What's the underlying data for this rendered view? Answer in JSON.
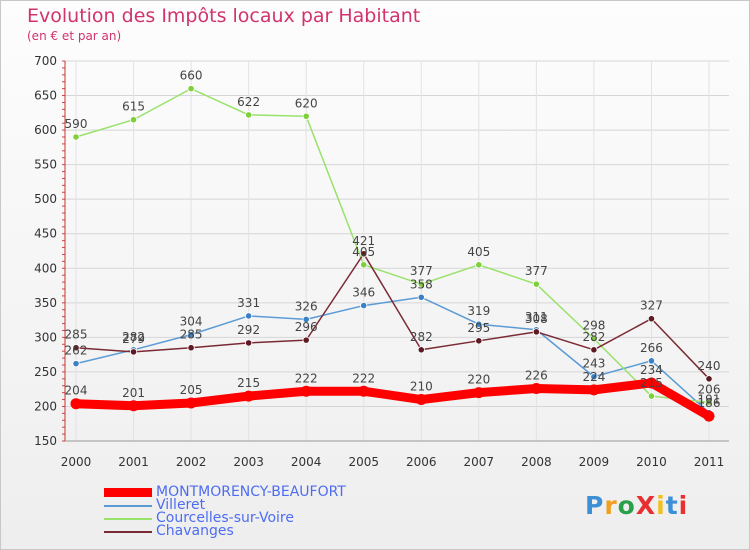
{
  "header": {
    "title": "Evolution des Impôts locaux par Habitant",
    "subtitle": "(en € et par an)"
  },
  "logo": {
    "text": "ProXiti"
  },
  "chart_data": {
    "type": "line",
    "title": "Evolution des Impôts locaux par Habitant",
    "subtitle": "(en € et par an)",
    "xlabel": "",
    "ylabel": "",
    "x": [
      "2000",
      "2001",
      "2002",
      "2003",
      "2004",
      "2005",
      "2006",
      "2007",
      "2008",
      "2009",
      "2010",
      "2011"
    ],
    "ylim": [
      150,
      700
    ],
    "yticks": [
      150,
      200,
      250,
      300,
      350,
      400,
      450,
      500,
      550,
      600,
      650,
      700
    ],
    "grid": true,
    "legend_position": "bottom-left",
    "series": [
      {
        "name": "Villeret",
        "color": "#5b9bd5",
        "marker": "#3a80c4",
        "values": [
          262,
          282,
          304,
          331,
          326,
          346,
          358,
          319,
          311,
          243,
          266,
          191
        ],
        "labels": [
          "262",
          "282",
          "304",
          "331",
          "326",
          "346",
          "358",
          "319",
          "311",
          "243",
          "266",
          "191"
        ]
      },
      {
        "name": "Courcelles-sur-Voire",
        "color": "#99e26a",
        "marker": "#7fcf3a",
        "values": [
          590,
          615,
          660,
          622,
          620,
          405,
          377,
          405,
          377,
          298,
          215,
          206
        ],
        "labels": [
          "590",
          "615",
          "660",
          "622",
          "620",
          "405",
          "377",
          "405",
          "377",
          "298",
          "215",
          "206"
        ]
      },
      {
        "name": "Chavanges",
        "color": "#7a2a34",
        "marker": "#5e1a22",
        "values": [
          285,
          279,
          285,
          292,
          296,
          421,
          282,
          295,
          308,
          282,
          327,
          240
        ],
        "labels": [
          "285",
          "279",
          "285",
          "292",
          "296",
          "421",
          "282",
          "295",
          "308",
          "282",
          "327",
          "240"
        ]
      },
      {
        "name": "MONTMORENCY-BEAUFORT",
        "color": "#ff0000",
        "marker": "#ff0000",
        "values": [
          204,
          201,
          205,
          215,
          222,
          222,
          210,
          220,
          226,
          224,
          234,
          186
        ],
        "labels": [
          "204",
          "201",
          "205",
          "215",
          "222",
          "222",
          "210",
          "220",
          "226",
          "224",
          "234",
          "186"
        ]
      }
    ],
    "legend_order": [
      "MONTMORENCY-BEAUFORT",
      "Villeret",
      "Courcelles-sur-Voire",
      "Chavanges"
    ]
  }
}
